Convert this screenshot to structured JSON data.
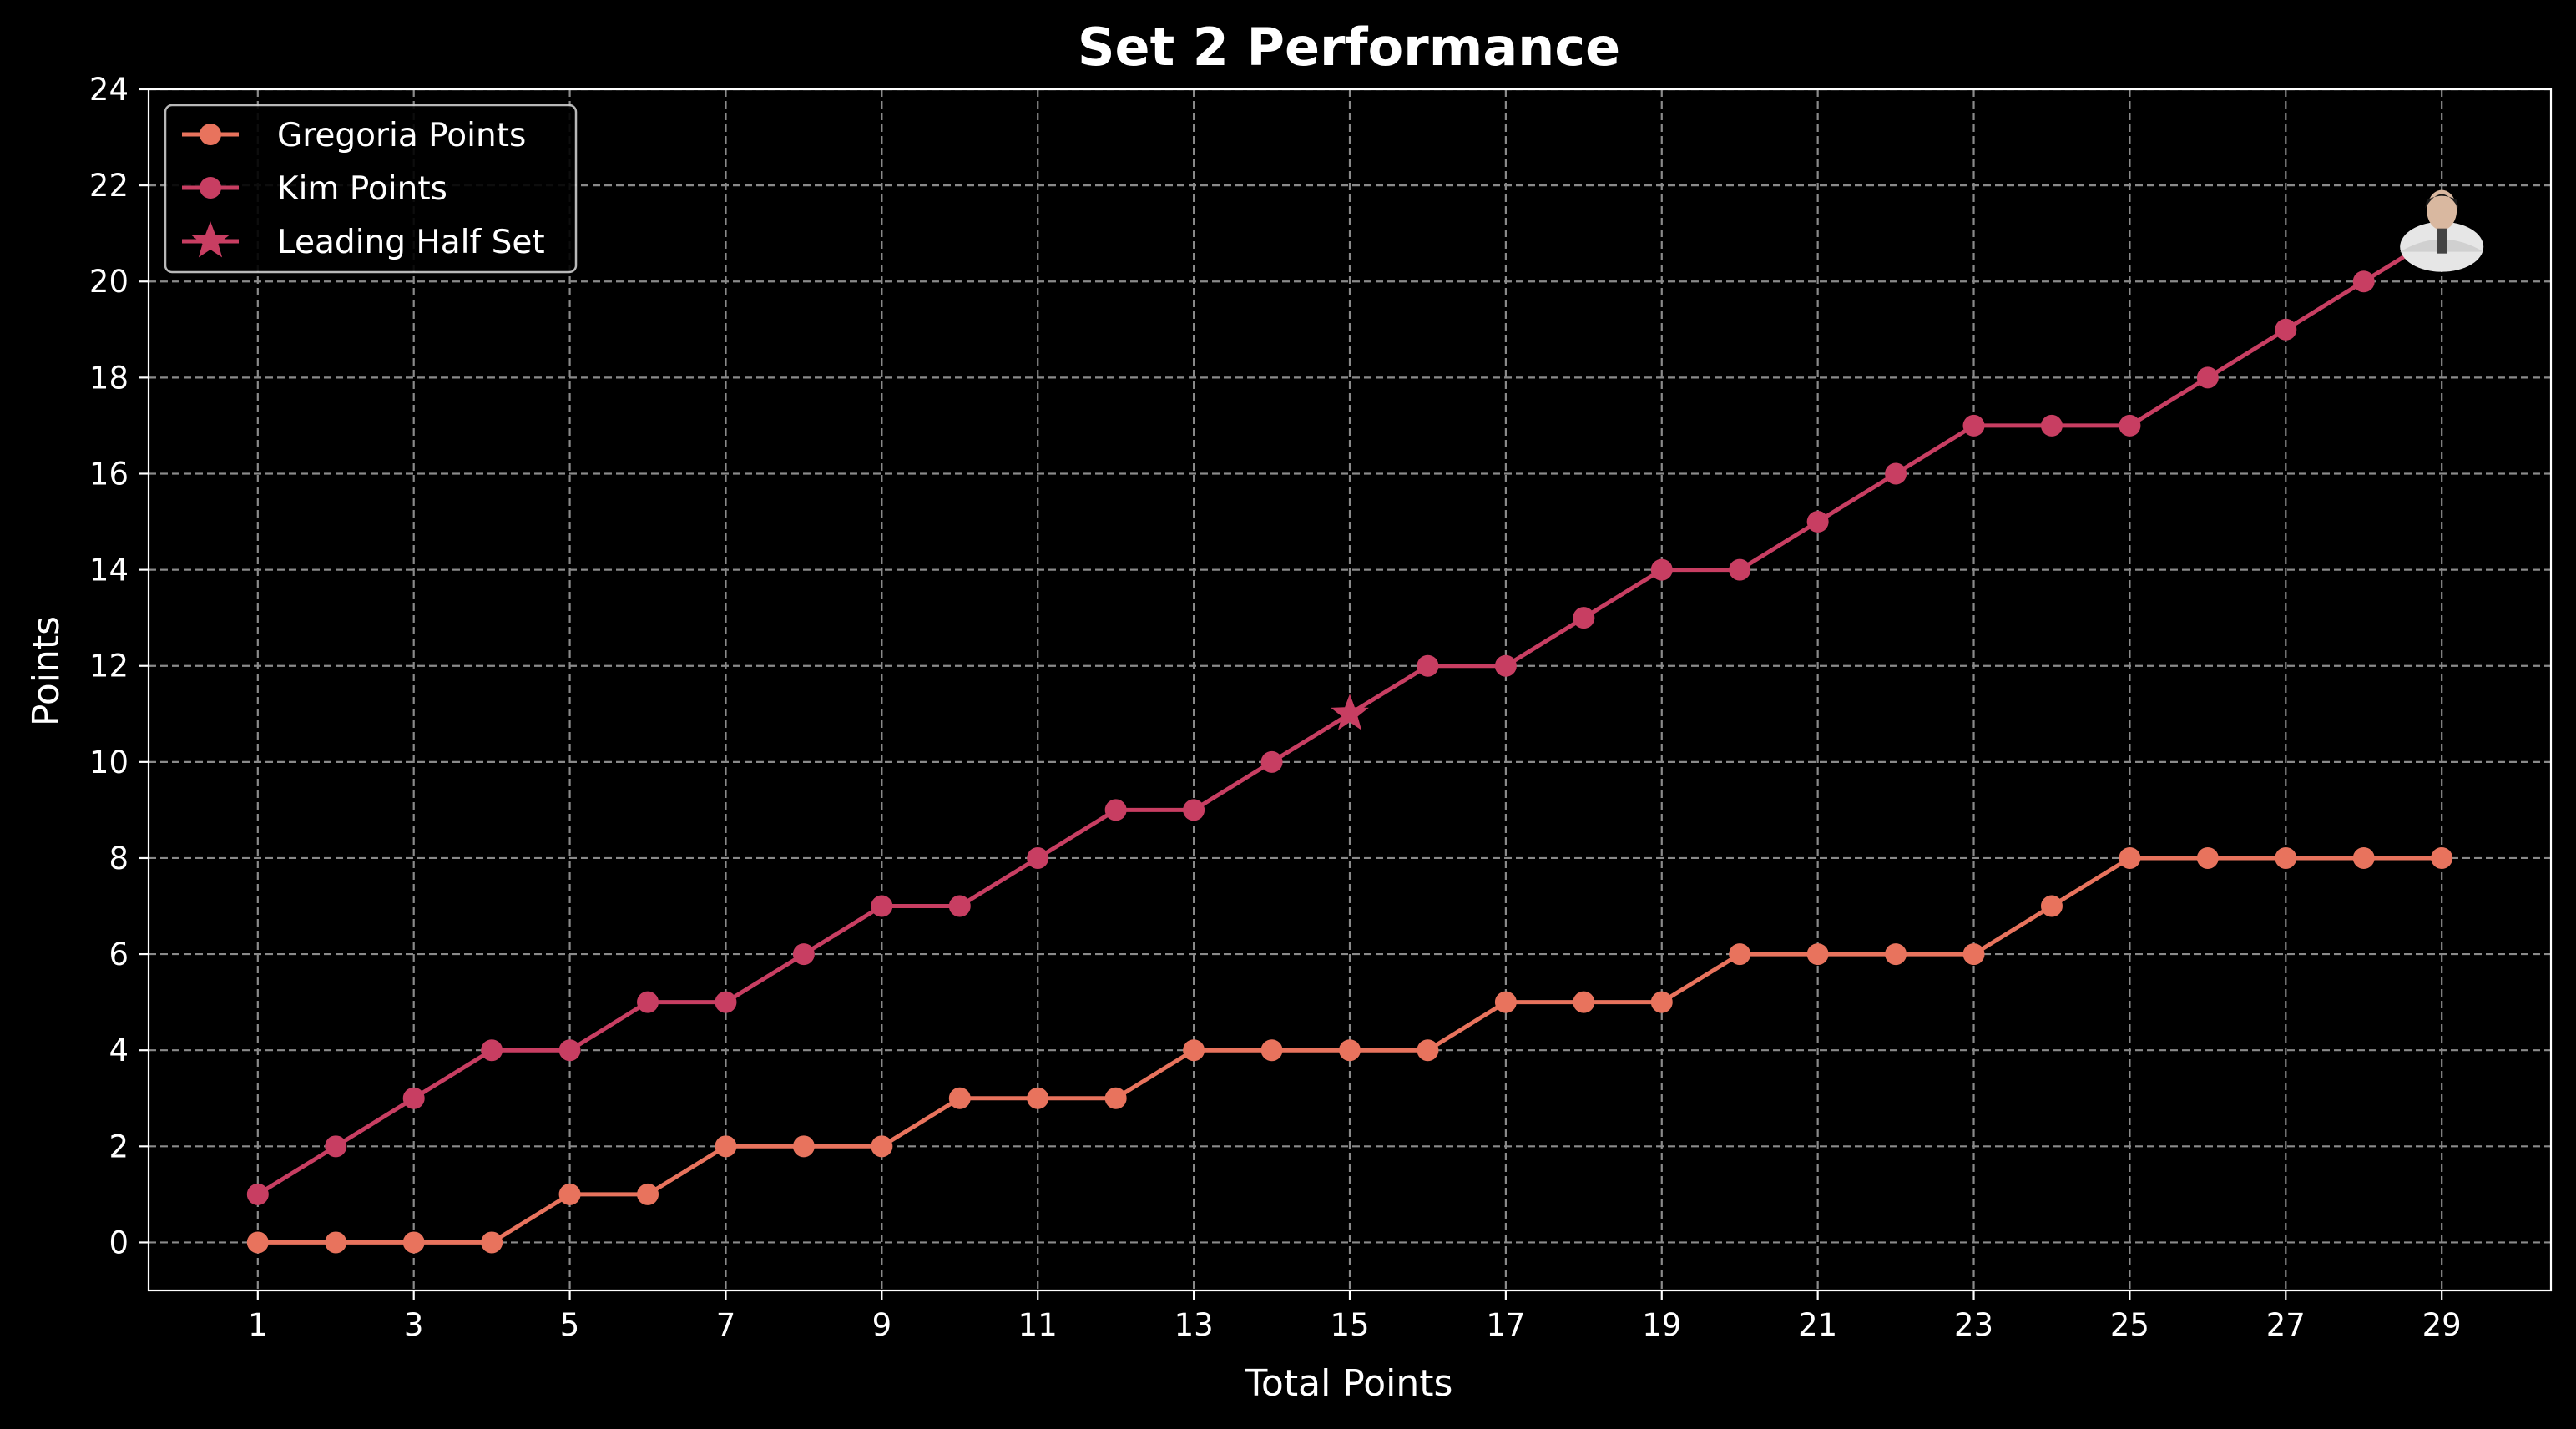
{
  "chart_data": {
    "type": "line",
    "title": "Set 2 Performance",
    "xlabel": "Total Points",
    "ylabel": "Points",
    "xlim": [
      -0.4,
      30.4
    ],
    "ylim": [
      -1,
      24
    ],
    "x_ticks": [
      1,
      3,
      5,
      7,
      9,
      11,
      13,
      15,
      17,
      19,
      21,
      23,
      25,
      27,
      29
    ],
    "y_ticks": [
      0,
      2,
      4,
      6,
      8,
      10,
      12,
      14,
      16,
      18,
      20,
      22,
      24
    ],
    "grid": true,
    "legend_position": "top-left",
    "x": [
      1,
      2,
      3,
      4,
      5,
      6,
      7,
      8,
      9,
      10,
      11,
      12,
      13,
      14,
      15,
      16,
      17,
      18,
      19,
      20,
      21,
      22,
      23,
      24,
      25,
      26,
      27,
      28,
      29
    ],
    "series": [
      {
        "name": "Gregoria Points",
        "color": "#e8735d",
        "marker": "circle",
        "values": [
          0,
          0,
          0,
          0,
          1,
          1,
          2,
          2,
          2,
          3,
          3,
          3,
          4,
          4,
          4,
          4,
          5,
          5,
          5,
          6,
          6,
          6,
          6,
          7,
          8,
          8,
          8,
          8,
          8
        ]
      },
      {
        "name": "Kim Points",
        "color": "#c83e62",
        "marker": "circle",
        "values": [
          1,
          2,
          3,
          4,
          4,
          5,
          5,
          6,
          7,
          7,
          8,
          9,
          9,
          10,
          11,
          12,
          12,
          13,
          14,
          14,
          15,
          16,
          17,
          17,
          17,
          18,
          19,
          20,
          21
        ]
      }
    ],
    "annotations": [
      {
        "name": "Leading Half Set",
        "x": 15,
        "y": 11,
        "marker": "star",
        "color": "#c83e62"
      }
    ],
    "player_photo": {
      "series": "Kim Points",
      "x": 29,
      "y": 21
    }
  }
}
